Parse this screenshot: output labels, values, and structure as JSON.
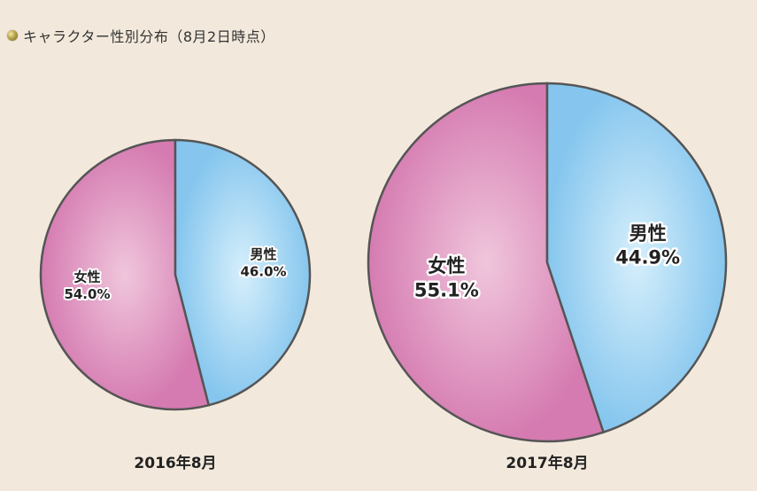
{
  "header": {
    "title": "キャラクター性別分布（8月2日時点）"
  },
  "colors": {
    "female": "#e3a3cb",
    "female_edge": "#d57bb1",
    "male": "#b8dff6",
    "male_edge": "#86c6ee",
    "stroke": "#555555"
  },
  "chart_data": [
    {
      "type": "pie",
      "caption": "2016年8月",
      "slices": [
        {
          "label": "女性",
          "value": 54.0,
          "display": "54.0%"
        },
        {
          "label": "男性",
          "value": 46.0,
          "display": "46.0%"
        }
      ]
    },
    {
      "type": "pie",
      "caption": "2017年8月",
      "slices": [
        {
          "label": "女性",
          "value": 55.1,
          "display": "55.1%"
        },
        {
          "label": "男性",
          "value": 44.9,
          "display": "44.9%"
        }
      ]
    }
  ]
}
